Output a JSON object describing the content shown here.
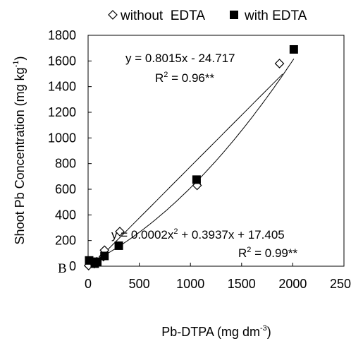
{
  "chart_data": {
    "type": "scatter",
    "panel_letter": "B",
    "xlabel": "Pb-DTPA (mg dm",
    "xlabel_sup": "-3",
    "xlabel_end": ")",
    "ylabel": "Shoot Pb Concentration (mg kg",
    "ylabel_sup": "-1",
    "ylabel_end": ")",
    "xlim": [
      0,
      2500
    ],
    "ylim": [
      0,
      1800
    ],
    "x_ticks": [
      0,
      500,
      1000,
      1500,
      2000,
      2500
    ],
    "y_ticks": [
      0,
      200,
      400,
      600,
      800,
      1000,
      1200,
      1400,
      1600,
      1800
    ],
    "grid": false,
    "legend_position": "top",
    "series": [
      {
        "name": "without  EDTA",
        "marker": "open-diamond",
        "x": [
          5,
          60,
          85,
          150,
          160,
          310,
          1065,
          1870
        ],
        "y": [
          5,
          20,
          35,
          75,
          125,
          270,
          630,
          1580
        ]
      },
      {
        "name": "with EDTA",
        "marker": "filled-square",
        "x": [
          10,
          65,
          90,
          160,
          300,
          1060,
          2010
        ],
        "y": [
          45,
          20,
          35,
          80,
          160,
          675,
          1690
        ]
      }
    ],
    "fits": [
      {
        "model": "linear",
        "a": 0.8015,
        "b": -24.717,
        "x_range": [
          0,
          1900
        ],
        "equation_text": "y = 0.8015x - 24.717",
        "r2_prefix": "R",
        "r2_sup": "2",
        "r2_suffix": " = 0.96**"
      },
      {
        "model": "quadratic",
        "a": 0.0002,
        "b": 0.3937,
        "c": 17.405,
        "x_range": [
          0,
          2010
        ],
        "eq_part1": "y = 0.0002x",
        "eq_sup": "2",
        "eq_part2": " + 0.3937x + 17.405",
        "r2_prefix": "R",
        "r2_sup": "2",
        "r2_suffix": " = 0.99**"
      }
    ]
  }
}
